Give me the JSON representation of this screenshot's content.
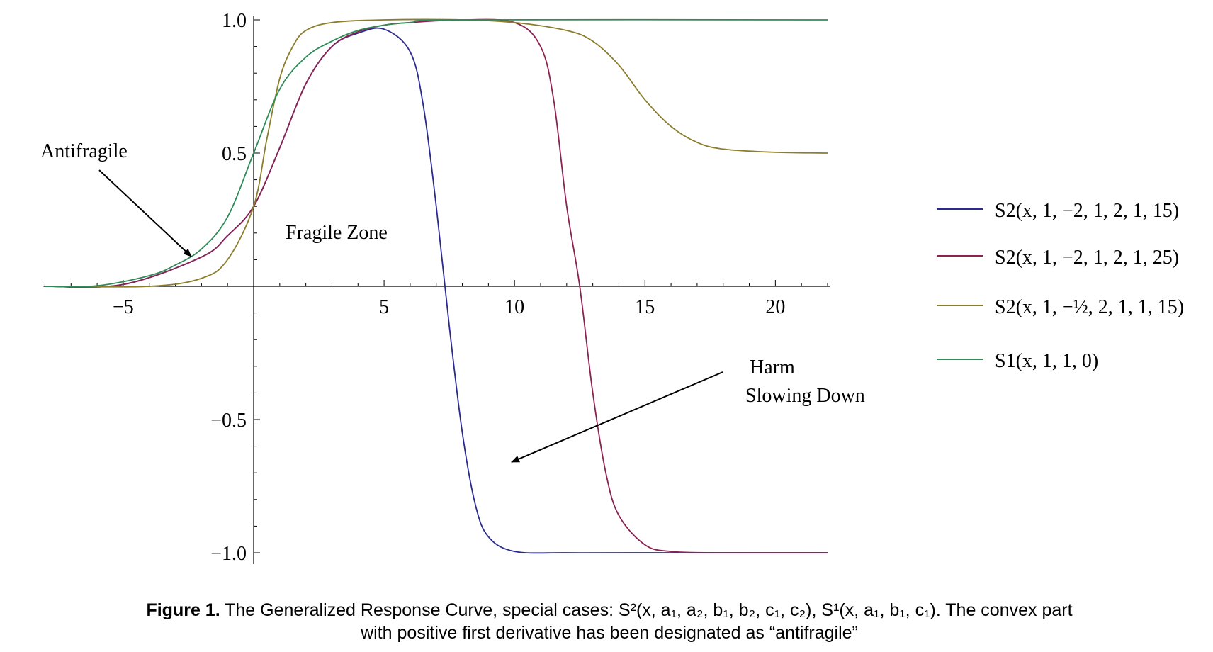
{
  "chart_data": {
    "type": "line",
    "title": "",
    "xlabel": "",
    "ylabel": "",
    "xlim": [
      -8,
      22
    ],
    "ylim": [
      -1.0,
      1.0
    ],
    "x_ticks": [
      -5,
      5,
      10,
      15,
      20
    ],
    "x_tick_labels": [
      "−5",
      "5",
      "10",
      "15",
      "20"
    ],
    "y_ticks": [
      -1.0,
      -0.5,
      0.5,
      1.0
    ],
    "y_tick_labels": [
      "−1.0",
      "−0.5",
      "0.5",
      "1.0"
    ],
    "grid": false,
    "legend_position": "right",
    "series": [
      {
        "name": "S2(x, 1, −2, 1, 2, 1, 15)",
        "color": "#2b2b8f",
        "x": [
          -8,
          -5,
          -2,
          -1,
          0,
          1,
          2,
          3,
          4,
          5,
          6,
          6.5,
          7,
          7.5,
          8,
          8.5,
          9,
          10,
          12,
          15,
          22
        ],
        "y": [
          0.0,
          0.007,
          0.11,
          0.19,
          0.3,
          0.52,
          0.76,
          0.9,
          0.95,
          0.965,
          0.88,
          0.68,
          0.3,
          -0.15,
          -0.55,
          -0.82,
          -0.94,
          -0.995,
          -1.0,
          -1.0,
          -1.0
        ]
      },
      {
        "name": "S2(x, 1, −2, 1, 2, 1, 25)",
        "color": "#8b2252",
        "x": [
          -8,
          -5,
          -2,
          -1,
          0,
          1,
          2,
          3,
          4,
          5,
          6,
          8,
          10,
          11,
          11.5,
          12,
          12.5,
          13,
          13.5,
          14,
          15,
          16,
          18,
          22
        ],
        "y": [
          0.0,
          0.007,
          0.11,
          0.19,
          0.3,
          0.52,
          0.76,
          0.9,
          0.955,
          0.98,
          0.99,
          1.0,
          0.99,
          0.9,
          0.7,
          0.3,
          0.0,
          -0.4,
          -0.7,
          -0.86,
          -0.97,
          -0.995,
          -1.0,
          -1.0
        ]
      },
      {
        "name": "S2(x, 1, −½, 2, 1, 1, 15)",
        "color": "#8b7d2a",
        "x": [
          -8,
          -4,
          -2,
          -1,
          0,
          0.5,
          1,
          1.5,
          2,
          3,
          5,
          8,
          10,
          12,
          13,
          14,
          15,
          16,
          17,
          18,
          20,
          22
        ],
        "y": [
          0.0,
          0.0,
          0.03,
          0.1,
          0.3,
          0.55,
          0.78,
          0.9,
          0.96,
          0.99,
          1.0,
          1.0,
          0.99,
          0.96,
          0.92,
          0.83,
          0.7,
          0.6,
          0.54,
          0.515,
          0.503,
          0.5
        ]
      },
      {
        "name": "S1(x, 1, 1, 0)",
        "color": "#2e8b57",
        "x": [
          -8,
          -6,
          -4,
          -3,
          -2,
          -1,
          0,
          1,
          2,
          3,
          4,
          5,
          6,
          8,
          22
        ],
        "y": [
          0.0,
          0.002,
          0.04,
          0.08,
          0.14,
          0.26,
          0.5,
          0.74,
          0.86,
          0.92,
          0.96,
          0.98,
          0.99,
          1.0,
          1.0
        ]
      }
    ],
    "annotations": [
      {
        "text": "Antifragile"
      },
      {
        "text": "Fragile Zone"
      },
      {
        "text": "Harm"
      },
      {
        "text": "Slowing Down"
      }
    ]
  },
  "caption": {
    "label": "Figure  1.",
    "text": " The Generalized Response Curve, special cases: S²(x, a₁, a₂, b₁, b₂, c₁, c₂),  S¹(x, a₁, b₁, c₁). The convex part",
    "text2": "with positive first derivative has been designated as  “antifragile”"
  }
}
